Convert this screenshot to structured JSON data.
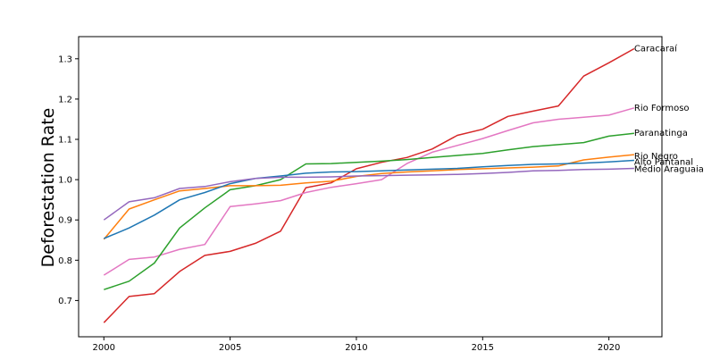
{
  "chart_data": {
    "type": "line",
    "title": "",
    "xlabel": "",
    "ylabel": "Deforestation Rate",
    "xlim": [
      1999,
      2022.1
    ],
    "ylim": [
      0.61,
      1.355
    ],
    "xticks": [
      2000,
      2005,
      2010,
      2015,
      2020
    ],
    "yticks": [
      0.7,
      0.8,
      0.9,
      1.0,
      1.1,
      1.2,
      1.3
    ],
    "ytick_labels": [
      "0.7",
      "0.8",
      "0.9",
      "1.0",
      "1.1",
      "1.2",
      "1.3"
    ],
    "grid": false,
    "legend": "none (series labelled at right end of lines)",
    "x": [
      2000,
      2001,
      2002,
      2003,
      2004,
      2005,
      2006,
      2007,
      2008,
      2009,
      2010,
      2011,
      2012,
      2013,
      2014,
      2015,
      2016,
      2017,
      2018,
      2019,
      2020,
      2021
    ],
    "series": [
      {
        "name": "Caracaraí",
        "color": "#d62728",
        "values": [
          0.645,
          0.71,
          0.717,
          0.772,
          0.812,
          0.822,
          0.842,
          0.872,
          0.98,
          0.992,
          1.027,
          1.043,
          1.055,
          1.076,
          1.11,
          1.125,
          1.157,
          1.17,
          1.183,
          1.257,
          1.29,
          1.325
        ]
      },
      {
        "name": "Rio Formoso",
        "color": "#e377c2",
        "values": [
          0.763,
          0.802,
          0.808,
          0.827,
          0.839,
          0.933,
          0.94,
          0.948,
          0.968,
          0.981,
          0.99,
          1.0,
          1.04,
          1.068,
          1.085,
          1.102,
          1.122,
          1.141,
          1.15,
          1.155,
          1.16,
          1.178
        ]
      },
      {
        "name": "Paranatinga",
        "color": "#2ca02c",
        "values": [
          0.727,
          0.748,
          0.793,
          0.88,
          0.93,
          0.975,
          0.985,
          1.0,
          1.039,
          1.04,
          1.043,
          1.046,
          1.05,
          1.055,
          1.06,
          1.065,
          1.074,
          1.082,
          1.087,
          1.092,
          1.108,
          1.115
        ]
      },
      {
        "name": "Rio Negro",
        "color": "#ff7f0e",
        "values": [
          0.852,
          0.927,
          0.95,
          0.972,
          0.978,
          0.985,
          0.985,
          0.986,
          0.992,
          0.996,
          1.008,
          1.015,
          1.019,
          1.022,
          1.025,
          1.027,
          1.029,
          1.031,
          1.034,
          1.049,
          1.056,
          1.062
        ]
      },
      {
        "name": "Alto Pantanal",
        "color": "#1f77b4",
        "values": [
          0.854,
          0.88,
          0.912,
          0.95,
          0.968,
          0.99,
          1.003,
          1.009,
          1.016,
          1.019,
          1.02,
          1.022,
          1.024,
          1.026,
          1.028,
          1.032,
          1.035,
          1.038,
          1.039,
          1.041,
          1.044,
          1.048
        ]
      },
      {
        "name": "Médio Araguaia",
        "color": "#9467bd",
        "values": [
          0.9,
          0.945,
          0.955,
          0.978,
          0.983,
          0.995,
          1.003,
          1.006,
          1.006,
          1.007,
          1.009,
          1.01,
          1.011,
          1.012,
          1.013,
          1.015,
          1.018,
          1.022,
          1.023,
          1.025,
          1.026,
          1.028
        ]
      }
    ]
  }
}
